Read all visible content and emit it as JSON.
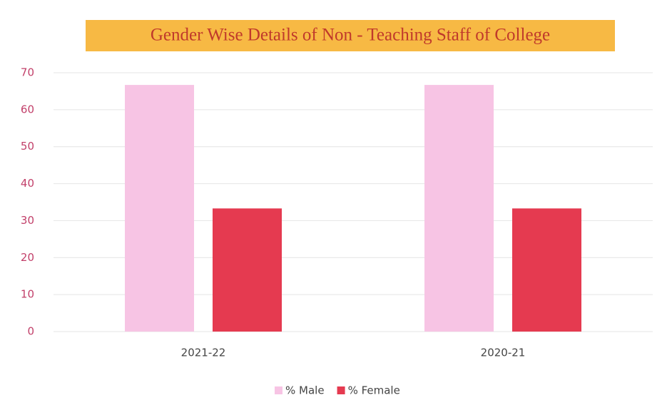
{
  "chart_data": {
    "type": "bar",
    "title": "Gender Wise Details of Non - Teaching Staff of College",
    "categories": [
      "2021-22",
      "2020-21"
    ],
    "series": [
      {
        "name": "% Male",
        "color": "#f7c4e4",
        "values": [
          66.7,
          66.7
        ]
      },
      {
        "name": "% Female",
        "color": "#e53a50",
        "values": [
          33.3,
          33.3
        ]
      }
    ],
    "ylim": [
      0,
      70
    ],
    "yticks": [
      0,
      10,
      20,
      30,
      40,
      50,
      60,
      70
    ],
    "grid": true,
    "legend": "bottom"
  }
}
